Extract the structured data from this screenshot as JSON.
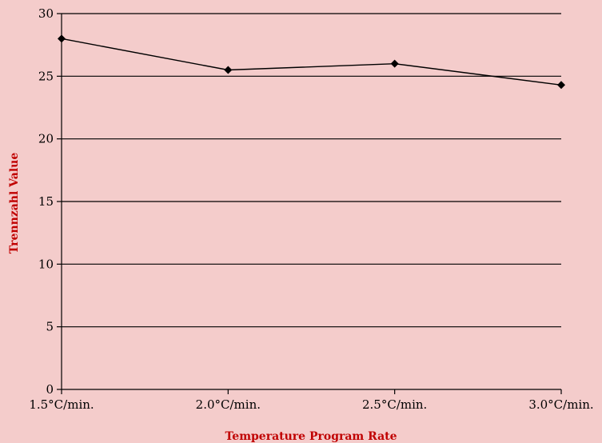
{
  "chart_data": {
    "type": "line",
    "title": "",
    "xlabel": "Temperature Program Rate",
    "ylabel": "Trennzahl Value",
    "categories": [
      "1.5°C/min.",
      "2.0°C/min.",
      "2.5°C/min.",
      "3.0°C/min."
    ],
    "series": [
      {
        "values": [
          28.0,
          25.5,
          26.0,
          24.3
        ]
      }
    ],
    "ylim": [
      0,
      30
    ],
    "yticks": [
      0,
      5,
      10,
      15,
      20,
      25,
      30
    ],
    "grid": true,
    "legend": "none",
    "colors": {
      "background": "#f4cccb",
      "line": "#000000",
      "marker": "#000000",
      "axis_title": "#c00000"
    }
  }
}
